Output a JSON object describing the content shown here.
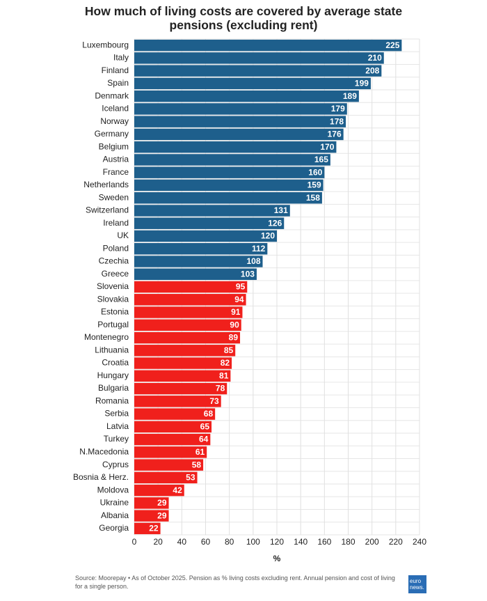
{
  "chart_data": {
    "type": "bar",
    "orientation": "horizontal",
    "title": "How much of living costs are covered by average state pensions (excluding rent)",
    "categories": [
      "Luxembourg",
      "Italy",
      "Finland",
      "Spain",
      "Denmark",
      "Iceland",
      "Norway",
      "Germany",
      "Belgium",
      "Austria",
      "France",
      "Netherlands",
      "Sweden",
      "Switzerland",
      "Ireland",
      "UK",
      "Poland",
      "Czechia",
      "Greece",
      "Slovenia",
      "Slovakia",
      "Estonia",
      "Portugal",
      "Montenegro",
      "Lithuania",
      "Croatia",
      "Hungary",
      "Bulgaria",
      "Romania",
      "Serbia",
      "Latvia",
      "Turkey",
      "N.Macedonia",
      "Cyprus",
      "Bosnia & Herz.",
      "Moldova",
      "Ukraine",
      "Albania",
      "Georgia"
    ],
    "values": [
      225,
      210,
      208,
      199,
      189,
      179,
      178,
      176,
      170,
      165,
      160,
      159,
      158,
      131,
      126,
      120,
      112,
      108,
      103,
      95,
      94,
      91,
      90,
      89,
      85,
      82,
      81,
      78,
      73,
      68,
      65,
      64,
      61,
      58,
      53,
      42,
      29,
      29,
      22
    ],
    "colors": [
      "#1e5f8c",
      "#1e5f8c",
      "#1e5f8c",
      "#1e5f8c",
      "#1e5f8c",
      "#1e5f8c",
      "#1e5f8c",
      "#1e5f8c",
      "#1e5f8c",
      "#1e5f8c",
      "#1e5f8c",
      "#1e5f8c",
      "#1e5f8c",
      "#1e5f8c",
      "#1e5f8c",
      "#1e5f8c",
      "#1e5f8c",
      "#1e5f8c",
      "#1e5f8c",
      "#f0201c",
      "#f0201c",
      "#f0201c",
      "#f0201c",
      "#f0201c",
      "#f0201c",
      "#f0201c",
      "#f0201c",
      "#f0201c",
      "#f0201c",
      "#f0201c",
      "#f0201c",
      "#f0201c",
      "#f0201c",
      "#f0201c",
      "#f0201c",
      "#f0201c",
      "#f0201c",
      "#f0201c",
      "#f0201c"
    ],
    "xlabel": "%",
    "xlim": [
      0,
      240
    ],
    "xticks": [
      0,
      20,
      40,
      60,
      80,
      100,
      120,
      140,
      160,
      180,
      200,
      220,
      240
    ],
    "grid": true,
    "source": "Source: Moorepay • As of October 2025. Pension as % living costs excluding rent. Annual pension and cost of living for a single person.",
    "logo": [
      "euro",
      "news."
    ]
  }
}
